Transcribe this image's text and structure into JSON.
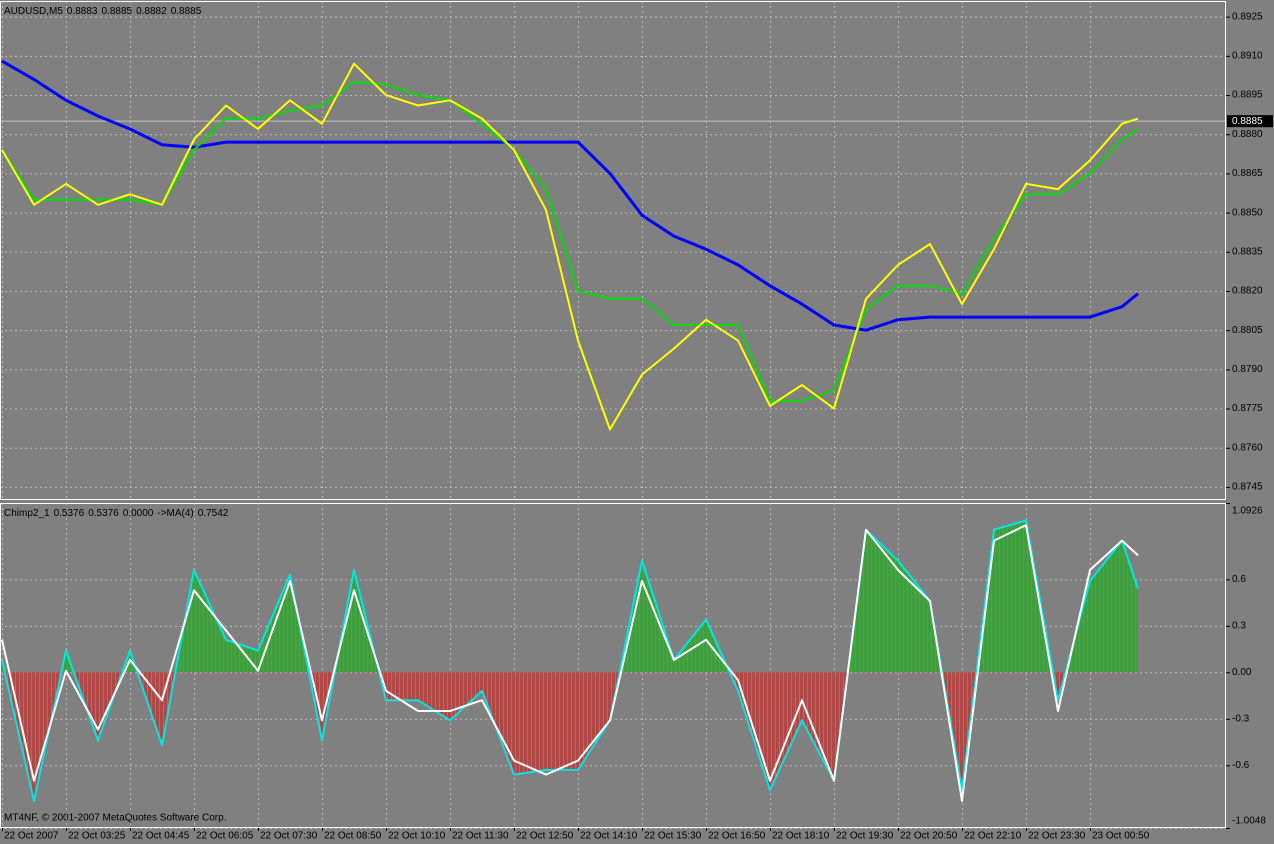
{
  "chart_data": [
    {
      "type": "line",
      "header": [
        "AUDUSD,M5",
        0.8883,
        0.8885,
        0.8882,
        0.8885
      ],
      "current_price": 0.8885,
      "x": [
        0,
        8,
        16,
        24,
        32,
        40,
        48,
        56,
        64,
        72,
        80,
        88,
        96,
        104,
        112,
        120,
        128,
        136,
        144,
        152,
        160,
        168,
        176,
        184,
        192,
        200,
        208,
        216,
        224,
        232,
        240,
        248,
        256,
        264,
        272,
        280,
        284
      ],
      "xlim": [
        -0.5,
        306
      ],
      "ylim": [
        0.874,
        0.8931
      ],
      "yticks": [
        0.8925,
        {
          "value": 0.891,
          "label": "0.8910"
        },
        0.8895,
        {
          "value": 0.888,
          "label": "0.8880"
        },
        0.8865,
        {
          "value": 0.885,
          "label": "0.8850"
        },
        0.8835,
        {
          "value": 0.882,
          "label": "0.8820"
        },
        0.8805,
        {
          "value": 0.879,
          "label": "0.8790"
        },
        0.8775,
        {
          "value": 0.876,
          "label": "0.8760"
        },
        0.8745
      ],
      "grid": true,
      "series": [
        {
          "color": "#0000ff",
          "width": 3,
          "values": [
            0.8908,
            0.8901,
            0.8893,
            0.8887,
            0.8882,
            0.8876,
            0.8875,
            0.8877,
            0.8877,
            0.8877,
            0.8877,
            0.8877,
            0.8877,
            0.8877,
            0.8877,
            0.8877,
            0.8877,
            0.8877,
            0.8877,
            0.8865,
            0.8849,
            0.8841,
            0.8836,
            0.883,
            0.8822,
            0.8815,
            0.8807,
            0.8805,
            0.8809,
            0.881,
            0.881,
            0.881,
            0.881,
            0.881,
            0.881,
            0.8814,
            0.8819
          ]
        },
        {
          "color": "#00dd00",
          "width": 2,
          "values": [
            0.8874,
            0.8855,
            0.8855,
            0.8855,
            0.8855,
            0.8853,
            0.8874,
            0.8886,
            0.8886,
            0.8889,
            0.8891,
            0.89,
            0.8899,
            0.8895,
            0.8893,
            0.8884,
            0.8874,
            0.8859,
            0.882,
            0.8817,
            0.8817,
            0.8807,
            0.8807,
            0.8807,
            0.8778,
            0.8778,
            0.8782,
            0.8813,
            0.8822,
            0.8822,
            0.8819,
            0.884,
            0.8857,
            0.8857,
            0.8865,
            0.8878,
            0.8882
          ]
        },
        {
          "color": "#ffff00",
          "width": 2,
          "values": [
            0.8874,
            0.8853,
            0.8861,
            0.8853,
            0.8857,
            0.8853,
            0.8878,
            0.8891,
            0.8882,
            0.8893,
            0.8884,
            0.8907,
            0.8895,
            0.8891,
            0.8893,
            0.8886,
            0.8874,
            0.8851,
            0.8801,
            0.8767,
            0.8788,
            0.8798,
            0.8809,
            0.8801,
            0.8776,
            0.8784,
            0.8775,
            0.8817,
            0.883,
            0.8838,
            0.8815,
            0.8836,
            0.8861,
            0.8859,
            0.887,
            0.8884,
            0.8886
          ]
        }
      ]
    },
    {
      "type": "oscillator",
      "header": [
        "Chimp2_1",
        0.5376,
        0.5376,
        "0.0000",
        "->MA(4)",
        0.7542
      ],
      "annotation": "MT4NF, © 2001-2007 MetaQuotes Software Corp.",
      "x": [
        0,
        8,
        16,
        24,
        32,
        40,
        48,
        56,
        64,
        72,
        80,
        88,
        96,
        104,
        112,
        120,
        128,
        136,
        144,
        152,
        160,
        168,
        176,
        184,
        192,
        200,
        208,
        216,
        224,
        232,
        240,
        248,
        256,
        264,
        272,
        280,
        284
      ],
      "xlim": [
        -0.5,
        306
      ],
      "xticks": [
        {
          "value": 0,
          "label": "22 Oct 2007"
        },
        {
          "value": 16,
          "label": "22 Oct 03:25"
        },
        {
          "value": 32,
          "label": "22 Oct 04:45"
        },
        {
          "value": 48,
          "label": "22 Oct 06:05"
        },
        {
          "value": 64,
          "label": "22 Oct 07:30"
        },
        {
          "value": 80,
          "label": "22 Oct 08:50"
        },
        {
          "value": 96,
          "label": "22 Oct 10:10"
        },
        {
          "value": 112,
          "label": "22 Oct 11:30"
        },
        {
          "value": 128,
          "label": "22 Oct 12:50"
        },
        {
          "value": 144,
          "label": "22 Oct 14:10"
        },
        {
          "value": 160,
          "label": "22 Oct 15:30"
        },
        {
          "value": 176,
          "label": "22 Oct 16:50"
        },
        {
          "value": 192,
          "label": "22 Oct 18:10"
        },
        {
          "value": 208,
          "label": "22 Oct 19:30"
        },
        {
          "value": 224,
          "label": "22 Oct 20:50"
        },
        {
          "value": 240,
          "label": "22 Oct 22:10"
        },
        {
          "value": 256,
          "label": "22 Oct 23:30"
        },
        {
          "value": 272,
          "label": "23 Oct 00:50"
        }
      ],
      "ylim": [
        -1.0048,
        1.0926
      ],
      "yticks": [
        1.0926,
        0.6,
        0.3,
        {
          "value": 0,
          "label": "0.00"
        },
        -0.3,
        -0.6,
        -1.0048
      ],
      "grid": true,
      "series": [
        {
          "name": "Chimp2_1",
          "color": "#00e5e5",
          "width": 2,
          "fill_up": "#3f9f3f",
          "fill_down": "#b04848",
          "values": [
            0.08,
            -0.83,
            0.14,
            -0.44,
            0.14,
            -0.47,
            0.66,
            0.21,
            0.14,
            0.63,
            -0.44,
            0.66,
            -0.18,
            -0.18,
            -0.31,
            -0.12,
            -0.66,
            -0.63,
            -0.63,
            -0.31,
            0.72,
            0.08,
            0.34,
            -0.12,
            -0.76,
            -0.31,
            -0.7,
            0.92,
            0.72,
            0.46,
            -0.76,
            0.92,
            0.98,
            -0.18,
            0.59,
            0.85,
            0.5376
          ]
        },
        {
          "name": "->MA(4)",
          "color": "#ffffff",
          "width": 2,
          "values": [
            0.21,
            -0.7,
            0.01,
            -0.37,
            0.08,
            -0.18,
            0.53,
            0.27,
            0.01,
            0.59,
            -0.31,
            0.53,
            -0.12,
            -0.25,
            -0.25,
            -0.18,
            -0.57,
            -0.66,
            -0.57,
            -0.31,
            0.59,
            0.08,
            0.21,
            -0.05,
            -0.7,
            -0.18,
            -0.7,
            0.92,
            0.66,
            0.46,
            -0.83,
            0.85,
            0.95,
            -0.25,
            0.66,
            0.85,
            0.7542
          ]
        }
      ]
    }
  ]
}
